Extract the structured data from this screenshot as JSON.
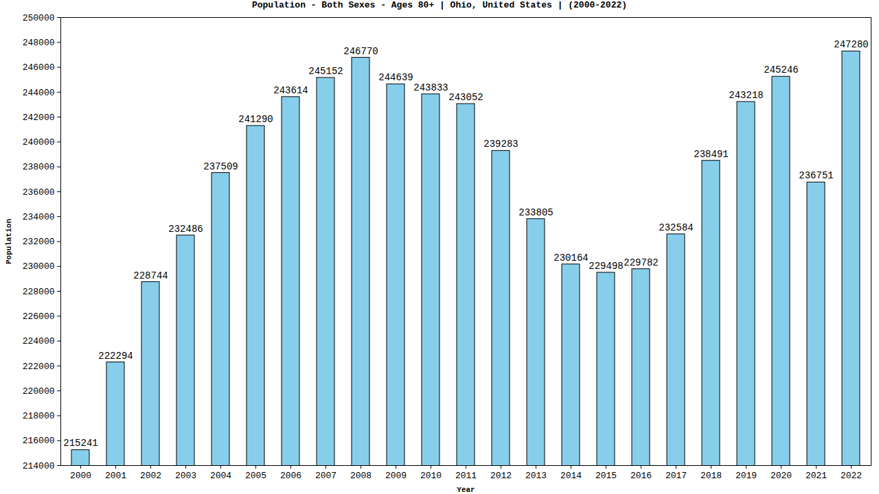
{
  "chart_data": {
    "type": "bar",
    "title": "Population - Both Sexes - Ages 80+ | Ohio, United States |  (2000-2022)",
    "x_label": "Year",
    "y_label": "Population",
    "categories": [
      "2000",
      "2001",
      "2002",
      "2003",
      "2004",
      "2005",
      "2006",
      "2007",
      "2008",
      "2009",
      "2010",
      "2011",
      "2012",
      "2013",
      "2014",
      "2015",
      "2016",
      "2017",
      "2018",
      "2019",
      "2020",
      "2021",
      "2022"
    ],
    "values": [
      215241,
      222294,
      228744,
      232486,
      237509,
      241290,
      243614,
      245152,
      246770,
      244639,
      243833,
      243052,
      239283,
      233805,
      230164,
      229498,
      229782,
      232584,
      238491,
      243218,
      245246,
      236751,
      247280
    ],
    "color": "#87ceeb",
    "ylim": [
      214000,
      250000
    ],
    "yticks": [
      214000,
      216000,
      218000,
      220000,
      222000,
      224000,
      226000,
      228000,
      230000,
      232000,
      234000,
      236000,
      238000,
      240000,
      242000,
      244000,
      246000,
      248000,
      250000
    ],
    "grid": false,
    "data_labels": true
  }
}
